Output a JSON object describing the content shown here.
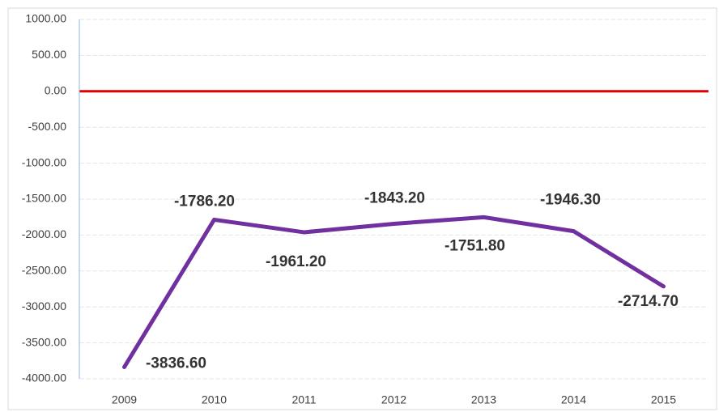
{
  "chart_data": {
    "type": "line",
    "categories": [
      "2009",
      "2010",
      "2011",
      "2012",
      "2013",
      "2014",
      "2015"
    ],
    "series": [
      {
        "color": "#7030a0",
        "values": [
          -3836.6,
          -1786.2,
          -1961.2,
          -1843.2,
          -1751.8,
          -1946.3,
          -2714.7
        ],
        "value_labels": [
          "-3836.60",
          "-1786.20",
          "-1961.20",
          "-1843.20",
          "-1751.80",
          "-1946.30",
          "-2714.70"
        ]
      }
    ],
    "ylim": [
      -4000,
      1000
    ],
    "yticks": [
      {
        "value": 1000,
        "label": "1000.00"
      },
      {
        "value": 500,
        "label": "500.00"
      },
      {
        "value": 0,
        "label": "0.00"
      },
      {
        "value": -500,
        "label": "-500.00"
      },
      {
        "value": -1000,
        "label": "-1000.00"
      },
      {
        "value": -1500,
        "label": "-1500.00"
      },
      {
        "value": -2000,
        "label": "-2000.00"
      },
      {
        "value": -2500,
        "label": "-2500.00"
      },
      {
        "value": -3000,
        "label": "-3000.00"
      },
      {
        "value": -3500,
        "label": "-3500.00"
      },
      {
        "value": -4000,
        "label": "-4000.00"
      }
    ],
    "grid": true,
    "zero_line_color": "#e00000"
  }
}
